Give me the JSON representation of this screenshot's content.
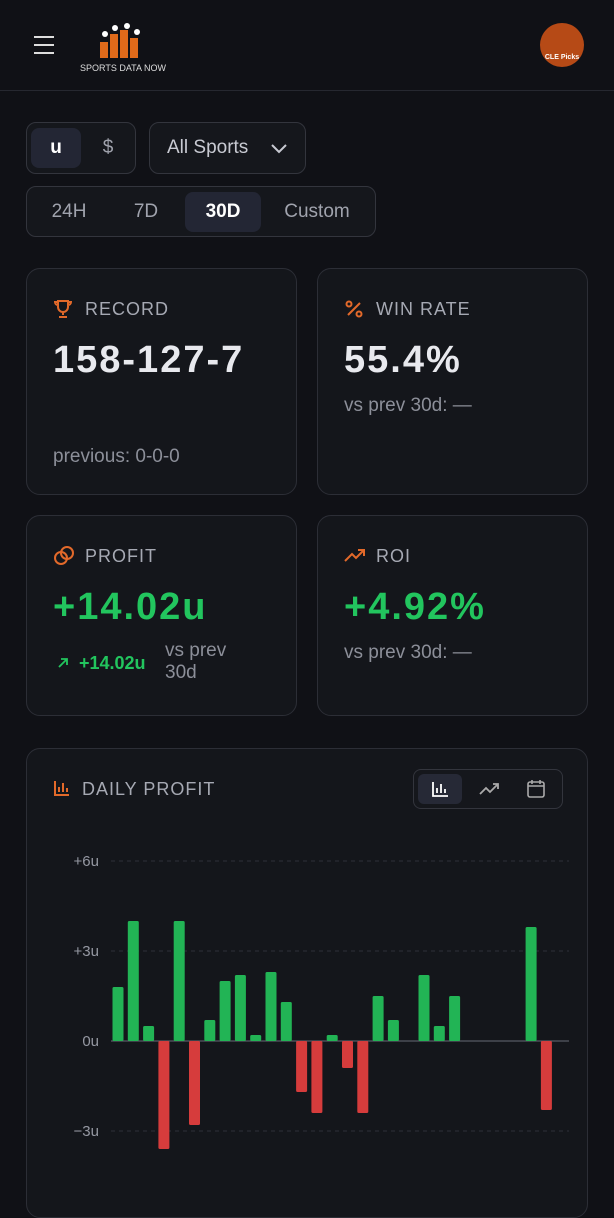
{
  "header": {
    "brand": "SPORTS DATA NOW",
    "avatar": "CLE Picks"
  },
  "filters": {
    "units": [
      "u",
      "$"
    ],
    "sport": "All Sports",
    "ranges": [
      "24H",
      "7D",
      "30D",
      "Custom"
    ]
  },
  "cards": [
    {
      "label": "RECORD",
      "value": "158-127-7",
      "sub": "previous: 0-0-0"
    },
    {
      "label": "WIN RATE",
      "value": "55.4%",
      "sub": "vs prev 30d: —"
    },
    {
      "label": "PROFIT",
      "value": "+14.02u",
      "change": "+14.02u",
      "sub": "vs prev 30d"
    },
    {
      "label": "ROI",
      "value": "+4.92%",
      "sub": "vs prev 30d: —"
    }
  ],
  "chart_data": {
    "type": "bar",
    "title": "DAILY PROFIT",
    "values": [
      1.8,
      4.0,
      0.5,
      -3.6,
      4.0,
      -2.8,
      0.7,
      2.0,
      2.2,
      0.2,
      2.3,
      1.3,
      -1.7,
      -2.4,
      0.2,
      -0.9,
      -2.4,
      1.5,
      0.7,
      0,
      2.2,
      0.5,
      1.5,
      0,
      0,
      0,
      0,
      3.8,
      -2.3
    ],
    "colors": {
      "positive": "#22b455",
      "negative": "#d63c3c"
    },
    "ylim": [
      -6,
      6
    ],
    "yticks": [
      {
        "value": 6,
        "label": "+6u"
      },
      {
        "value": 3,
        "label": "+3u"
      },
      {
        "value": 0,
        "label": "0u"
      },
      {
        "value": -3,
        "label": "−3u"
      }
    ],
    "grid": true
  }
}
